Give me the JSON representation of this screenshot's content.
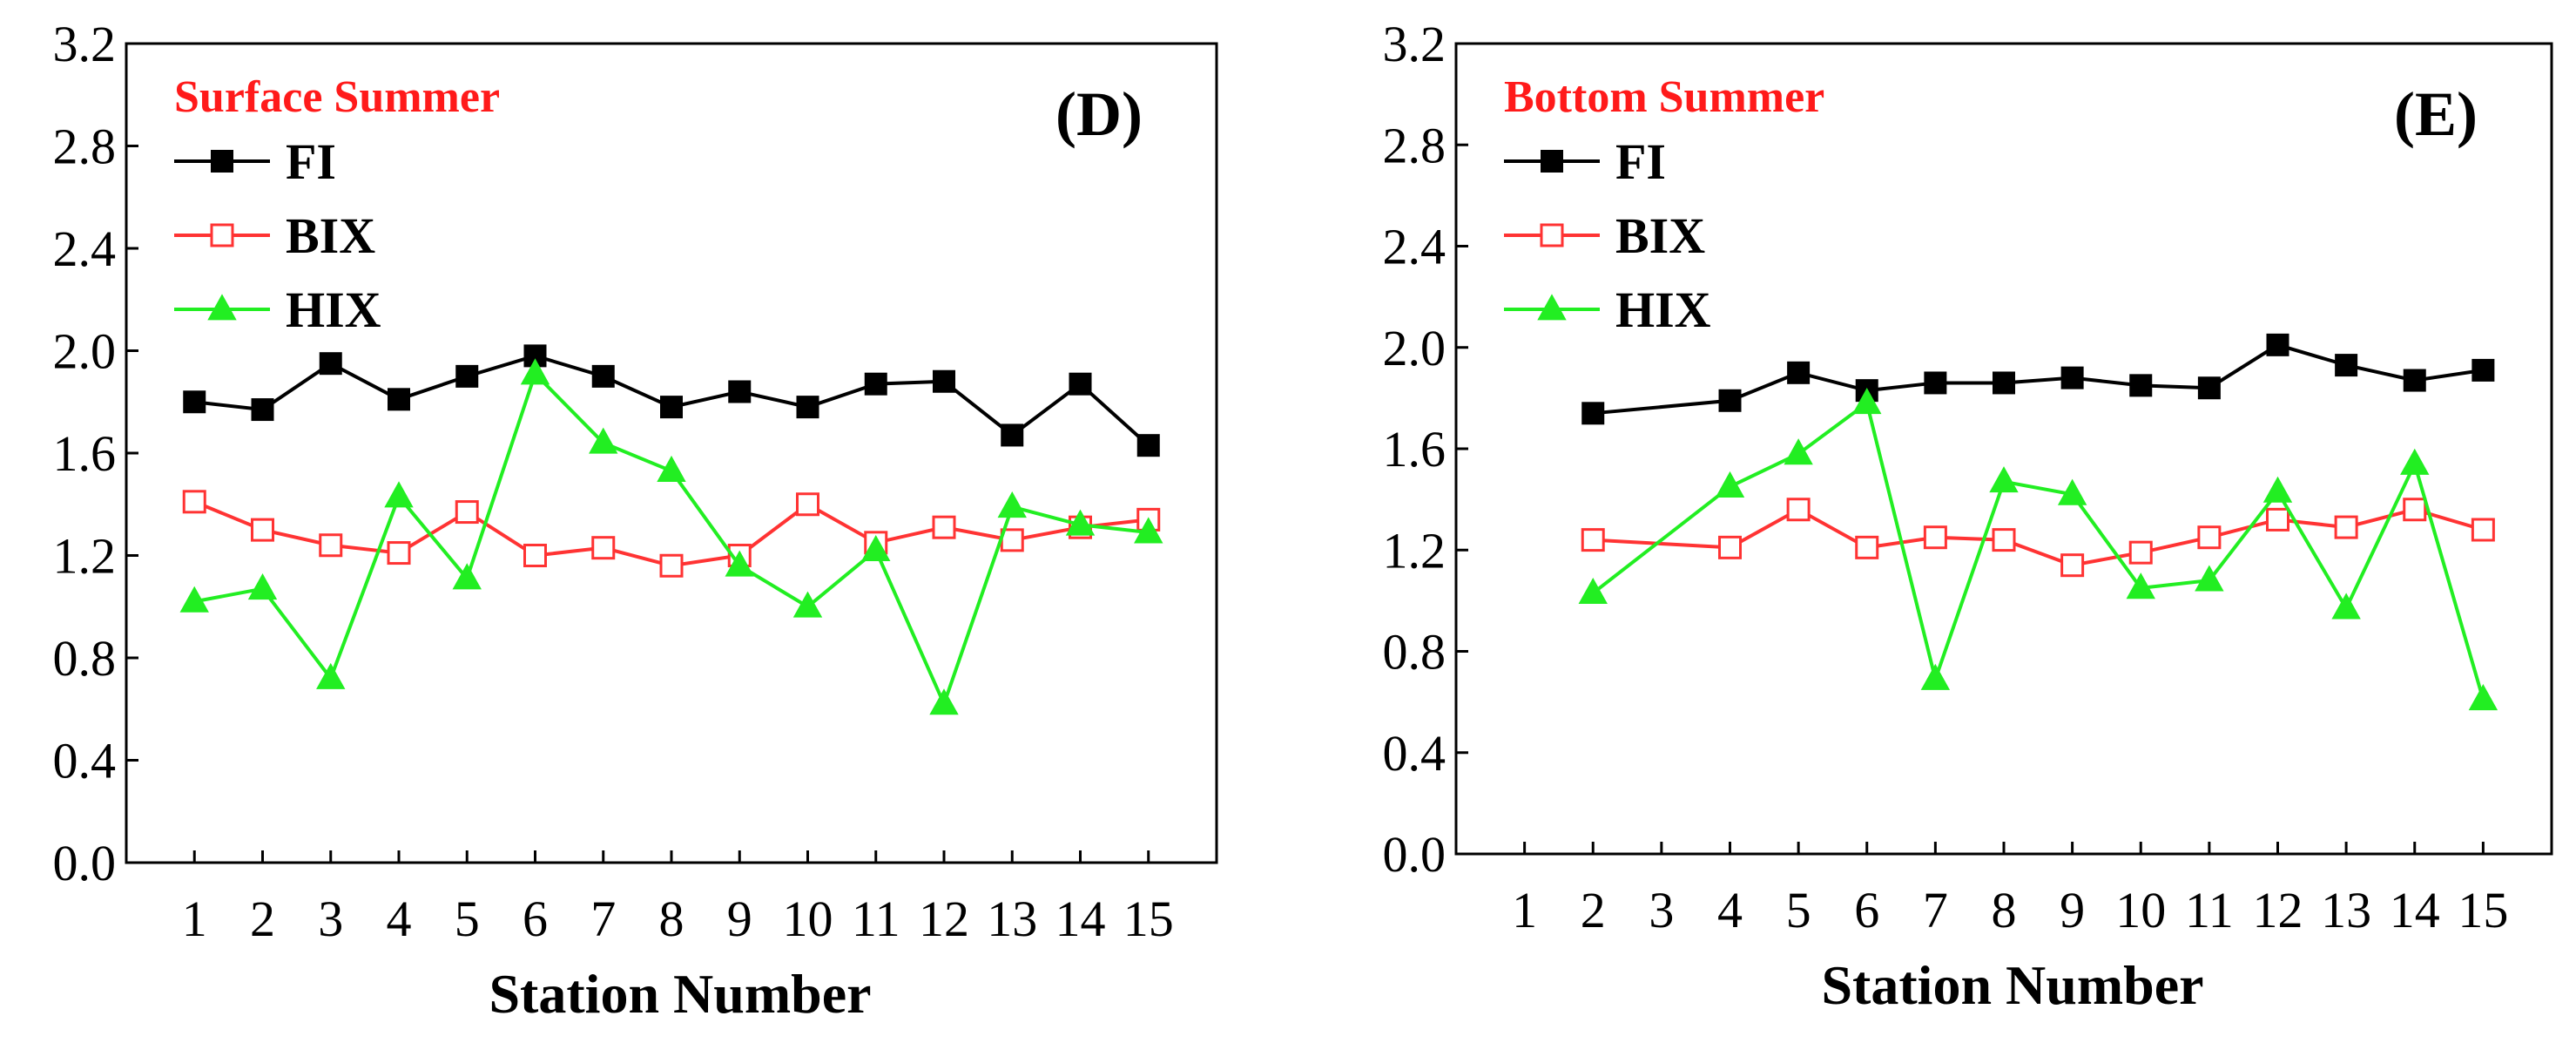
{
  "chart_data": [
    {
      "type": "line",
      "panel": "(D)",
      "title": "Surface Summer",
      "xlabel": "Station Number",
      "ylabel": "",
      "ylim": [
        0.0,
        3.2
      ],
      "yticks": [
        "0.0",
        "0.4",
        "0.8",
        "1.2",
        "1.6",
        "2.0",
        "2.4",
        "2.8",
        "3.2"
      ],
      "ytick_values": [
        0.0,
        0.4,
        0.8,
        1.2,
        1.6,
        2.0,
        2.4,
        2.8,
        3.2
      ],
      "categories": [
        "1",
        "2",
        "3",
        "4",
        "5",
        "6",
        "7",
        "8",
        "9",
        "10",
        "11",
        "12",
        "13",
        "14",
        "15"
      ],
      "x": [
        1,
        2,
        3,
        4,
        5,
        6,
        7,
        8,
        9,
        10,
        11,
        12,
        13,
        14,
        15
      ],
      "series": [
        {
          "name": "FI",
          "color": "#000000",
          "marker": "filled-square",
          "values": [
            1.8,
            1.77,
            1.95,
            1.81,
            1.9,
            1.98,
            1.9,
            1.78,
            1.84,
            1.78,
            1.87,
            1.88,
            1.67,
            1.87,
            1.63
          ]
        },
        {
          "name": "BIX",
          "color": "#ff3333",
          "marker": "open-square",
          "values": [
            1.41,
            1.3,
            1.24,
            1.21,
            1.37,
            1.2,
            1.23,
            1.16,
            1.2,
            1.4,
            1.25,
            1.31,
            1.26,
            1.31,
            1.34
          ]
        },
        {
          "name": "HIX",
          "color": "#22ee22",
          "marker": "filled-triangle",
          "values": [
            1.02,
            1.07,
            0.72,
            1.43,
            1.11,
            1.91,
            1.64,
            1.53,
            1.16,
            1.0,
            1.22,
            0.62,
            1.39,
            1.32,
            1.29
          ]
        }
      ]
    },
    {
      "type": "line",
      "panel": "(E)",
      "title": "Bottom Summer",
      "xlabel": "Station Number",
      "ylabel": "",
      "ylim": [
        0.0,
        3.2
      ],
      "yticks": [
        "0.0",
        "0.4",
        "0.8",
        "1.2",
        "1.6",
        "2.0",
        "2.4",
        "2.8",
        "3.2"
      ],
      "ytick_values": [
        0.0,
        0.4,
        0.8,
        1.2,
        1.6,
        2.0,
        2.4,
        2.8,
        3.2
      ],
      "categories": [
        "1",
        "2",
        "3",
        "4",
        "5",
        "6",
        "7",
        "8",
        "9",
        "10",
        "11",
        "12",
        "13",
        "14",
        "15"
      ],
      "x": [
        2,
        4,
        5,
        6,
        7,
        8,
        9,
        10,
        11,
        12,
        13,
        14,
        15
      ],
      "series": [
        {
          "name": "FI",
          "color": "#000000",
          "marker": "filled-square",
          "values": [
            1.74,
            1.79,
            1.9,
            1.83,
            1.86,
            1.86,
            1.88,
            1.85,
            1.84,
            2.01,
            1.93,
            1.87,
            1.91
          ]
        },
        {
          "name": "BIX",
          "color": "#ff3333",
          "marker": "open-square",
          "values": [
            1.24,
            1.21,
            1.36,
            1.21,
            1.25,
            1.24,
            1.14,
            1.19,
            1.25,
            1.32,
            1.29,
            1.36,
            1.28
          ]
        },
        {
          "name": "HIX",
          "color": "#22ee22",
          "marker": "filled-triangle",
          "values": [
            1.03,
            1.45,
            1.58,
            1.78,
            0.69,
            1.47,
            1.42,
            1.05,
            1.08,
            1.43,
            0.97,
            1.54,
            0.61
          ]
        }
      ]
    }
  ]
}
